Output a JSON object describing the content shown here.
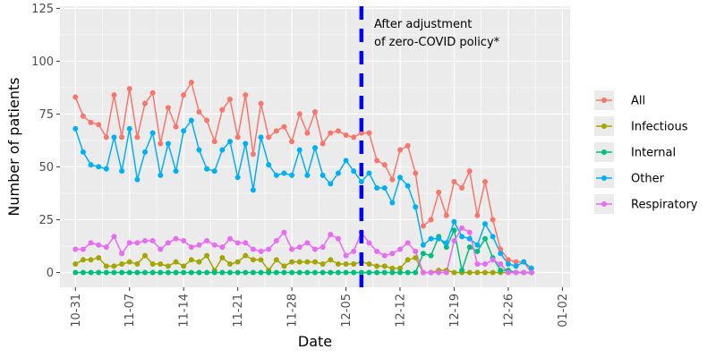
{
  "chart_data": {
    "type": "line",
    "xlabel": "Date",
    "ylabel": "Number of patients",
    "xlim": [
      "2022-10-29",
      "2023-01-03"
    ],
    "ylim": [
      -7,
      126
    ],
    "x_ticks": [
      "2022-10-31",
      "2022-11-07",
      "2022-11-14",
      "2022-11-21",
      "2022-11-28",
      "2022-12-05",
      "2022-12-12",
      "2022-12-19",
      "2022-12-26",
      "2023-01-02"
    ],
    "x_tick_labels": [
      "10-31",
      "11-07",
      "11-14",
      "11-21",
      "11-28",
      "12-05",
      "12-12",
      "12-19",
      "12-26",
      "01-02"
    ],
    "y_ticks": [
      0,
      25,
      50,
      75,
      100,
      125
    ],
    "y_tick_labels": [
      "0",
      "25",
      "50",
      "75",
      "100",
      "125"
    ],
    "grid": true,
    "legend_position": "right",
    "vline": {
      "x": "2022-12-07",
      "color": "#0000ff",
      "style": "dashed"
    },
    "annotation": [
      "After adjustment",
      "of zero-COVID policy*"
    ],
    "start_date": "2022-10-31",
    "series": [
      {
        "name": "All",
        "color": "#f8766d",
        "values": [
          83,
          74,
          71,
          70,
          64,
          84,
          64,
          87,
          64,
          80,
          85,
          61,
          78,
          69,
          84,
          90,
          76,
          72,
          62,
          77,
          82,
          64,
          84,
          56,
          80,
          64,
          67,
          69,
          62,
          75,
          66,
          76,
          61,
          66,
          67,
          65,
          64,
          66,
          66,
          53,
          51,
          44,
          58,
          60,
          47,
          22,
          25,
          38,
          27,
          43,
          40,
          48,
          27,
          43,
          25,
          11,
          6,
          5,
          5,
          0
        ]
      },
      {
        "name": "Infectious",
        "color": "#a3a500",
        "values": [
          4,
          6,
          6,
          7,
          3,
          3,
          4,
          5,
          4,
          8,
          4,
          4,
          3,
          5,
          3,
          6,
          5,
          8,
          1,
          7,
          4,
          5,
          8,
          6,
          6,
          1,
          6,
          3,
          5,
          5,
          5,
          5,
          4,
          6,
          4,
          4,
          4,
          5,
          4,
          3,
          3,
          2,
          2,
          6,
          7,
          0,
          0,
          1,
          1,
          0,
          0,
          0,
          0,
          0,
          0,
          0,
          0,
          0,
          0,
          0
        ]
      },
      {
        "name": "Internal",
        "color": "#00bf7d",
        "values": [
          0,
          0,
          0,
          0,
          0,
          0,
          0,
          0,
          0,
          0,
          0,
          0,
          0,
          0,
          0,
          0,
          0,
          0,
          0,
          0,
          0,
          0,
          0,
          0,
          0,
          0,
          0,
          0,
          0,
          0,
          0,
          0,
          0,
          0,
          0,
          0,
          0,
          0,
          0,
          0,
          0,
          0,
          0,
          0,
          0,
          9,
          8,
          17,
          12,
          20,
          1,
          12,
          10,
          16,
          7,
          1,
          1,
          0,
          0,
          0
        ]
      },
      {
        "name": "Other",
        "color": "#00b0f6",
        "values": [
          68,
          57,
          51,
          50,
          49,
          64,
          48,
          68,
          44,
          57,
          66,
          46,
          61,
          48,
          67,
          72,
          58,
          49,
          48,
          58,
          62,
          45,
          61,
          39,
          64,
          51,
          46,
          47,
          46,
          58,
          46,
          59,
          46,
          42,
          47,
          53,
          48,
          43,
          47,
          40,
          40,
          33,
          45,
          41,
          31,
          13,
          16,
          16,
          14,
          24,
          17,
          16,
          13,
          23,
          17,
          9,
          4,
          3,
          5,
          2
        ]
      },
      {
        "name": "Respiratory",
        "color": "#e76bf3",
        "values": [
          11,
          11,
          14,
          13,
          12,
          17,
          9,
          14,
          14,
          15,
          15,
          11,
          14,
          16,
          15,
          12,
          13,
          15,
          13,
          12,
          16,
          14,
          14,
          11,
          10,
          11,
          15,
          19,
          11,
          12,
          14,
          11,
          12,
          18,
          16,
          8,
          10,
          19,
          14,
          10,
          8,
          9,
          11,
          14,
          10,
          0,
          0,
          0,
          0,
          15,
          21,
          19,
          4,
          4,
          6,
          4,
          0,
          0,
          0,
          0
        ]
      }
    ]
  }
}
